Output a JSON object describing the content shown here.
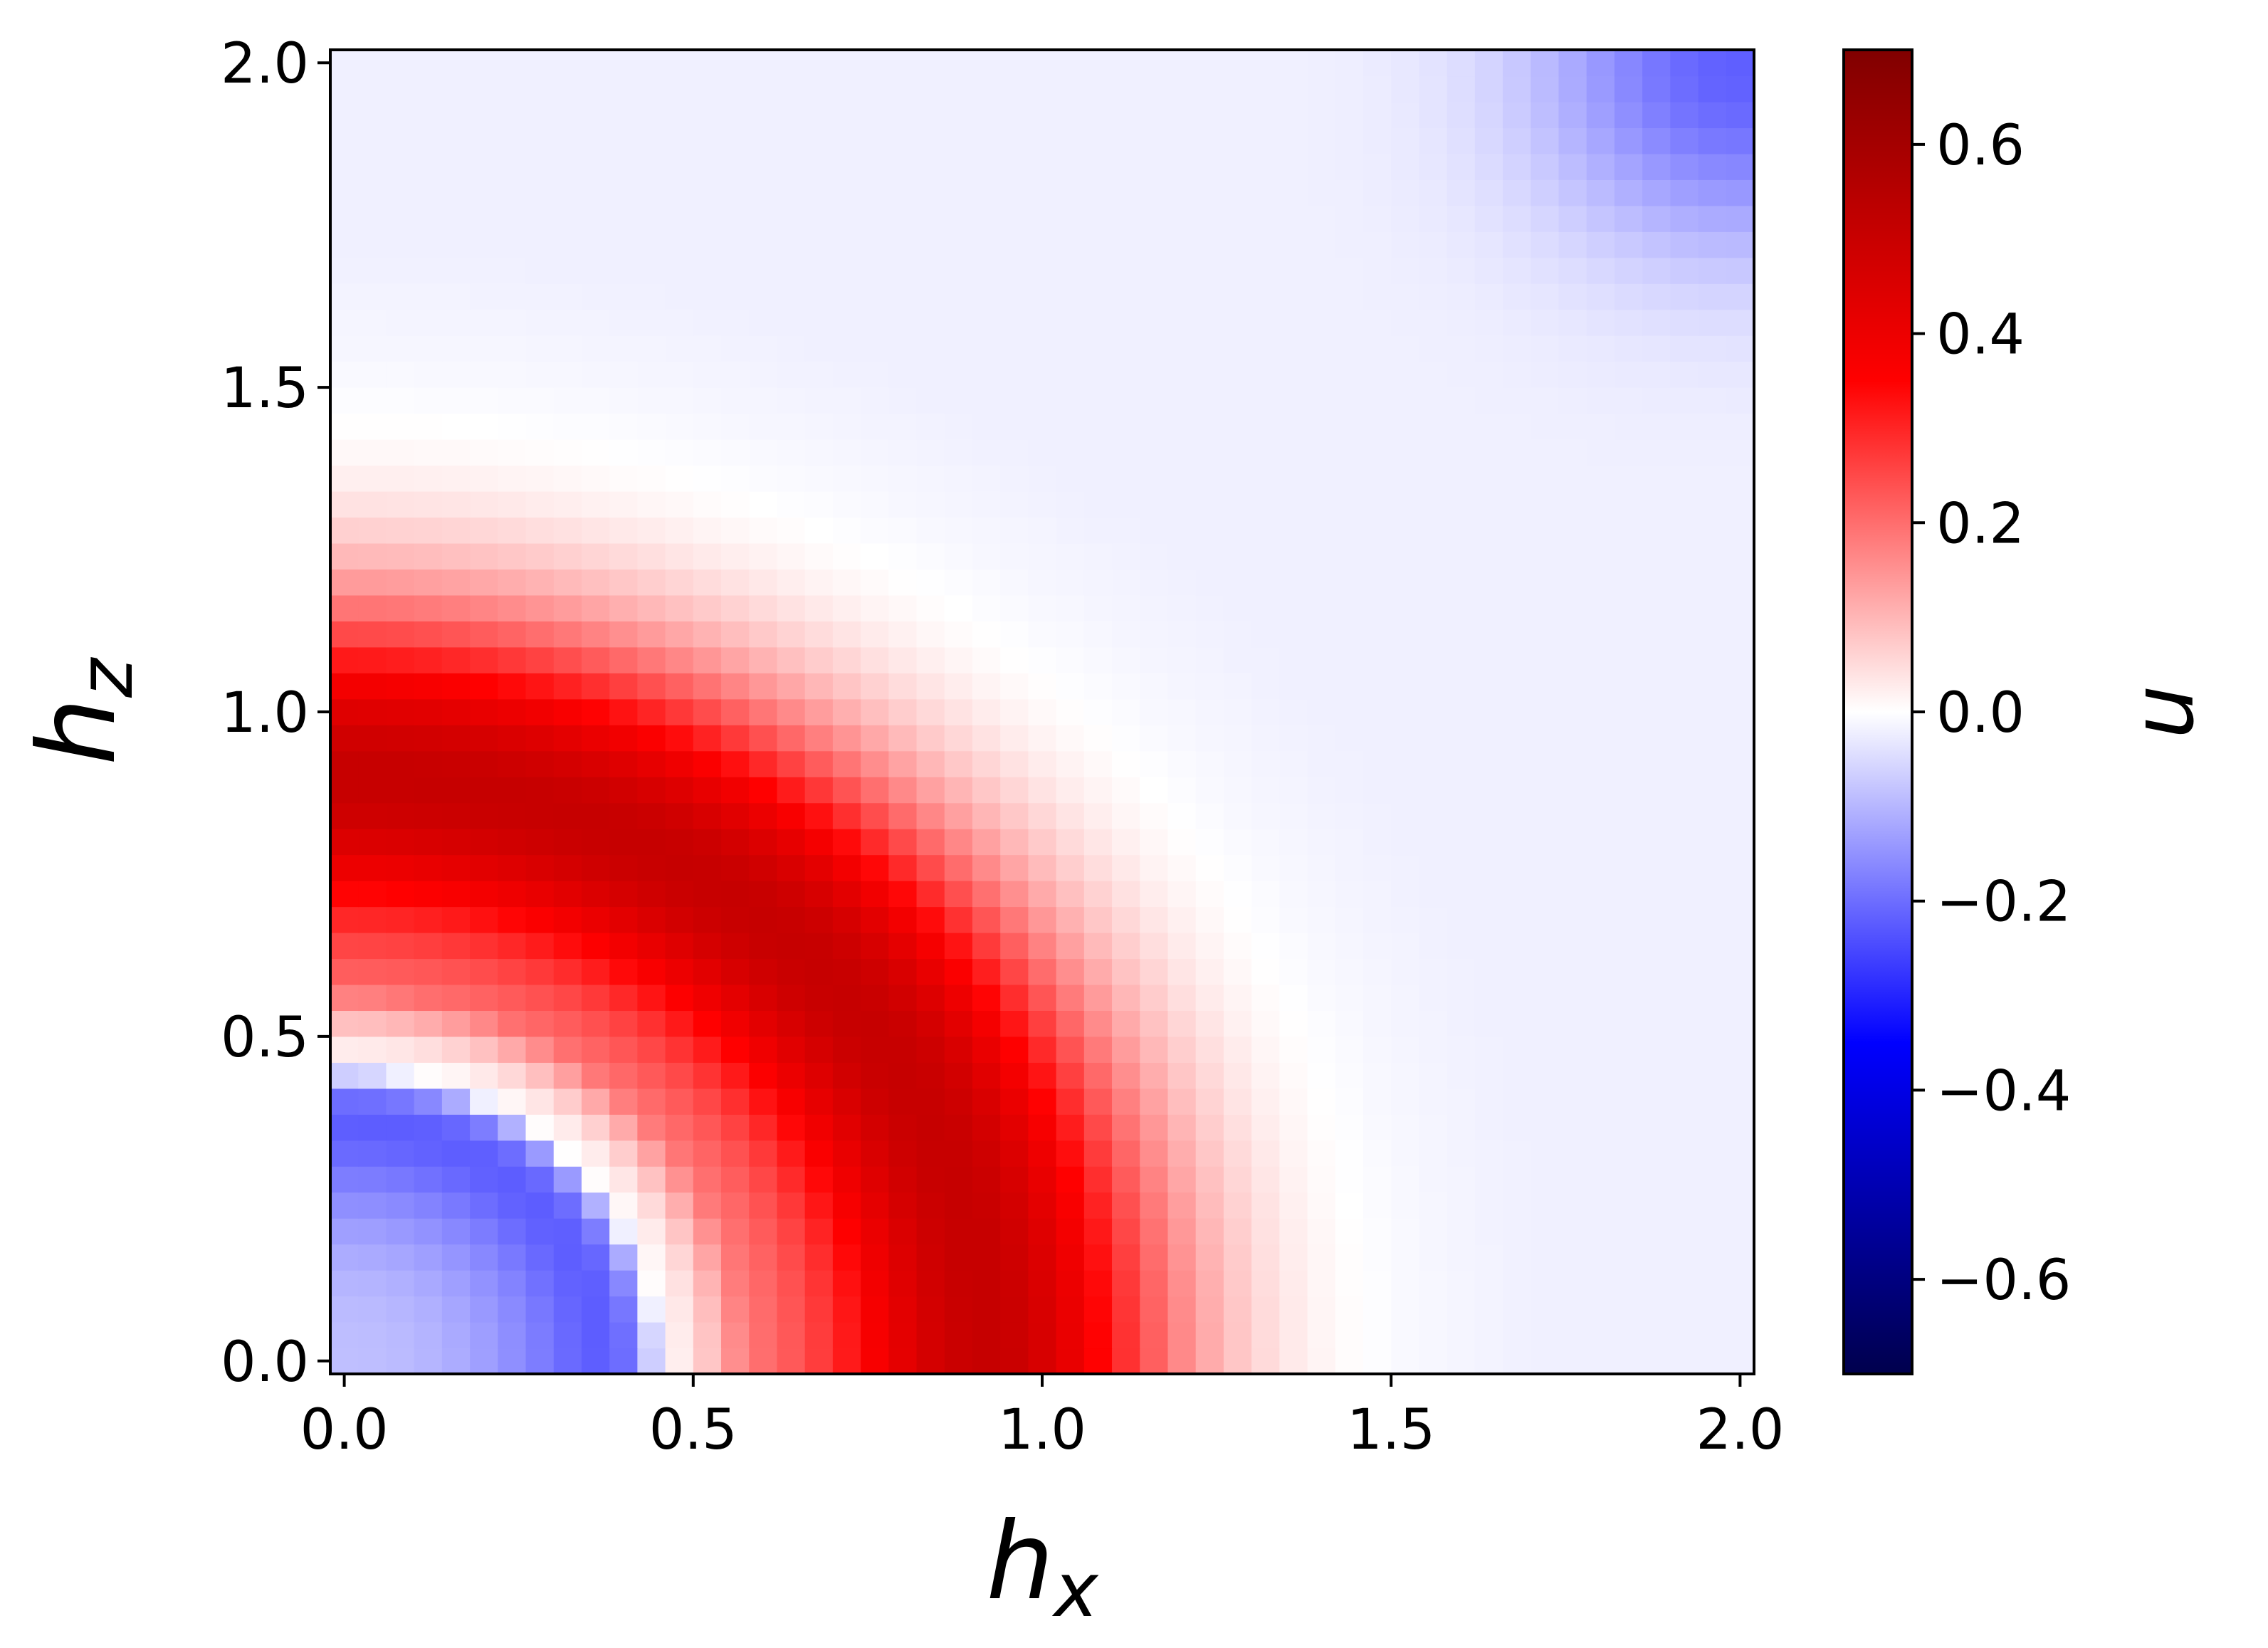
{
  "chart_data": {
    "type": "heatmap",
    "title": "",
    "xlabel": "h",
    "xlabel_sub": "x",
    "ylabel": "h",
    "ylabel_sub": "z",
    "colorbar_label": "u",
    "xlim": [
      0.0,
      2.0
    ],
    "ylim": [
      0.0,
      2.0
    ],
    "clim": [
      -0.7,
      0.7
    ],
    "colormap": "seismic",
    "grid_size": 51,
    "xticks": [
      0.0,
      0.5,
      1.0,
      1.5,
      2.0
    ],
    "xtick_labels": [
      "0.0",
      "0.5",
      "1.0",
      "1.5",
      "2.0"
    ],
    "yticks": [
      0.0,
      0.5,
      1.0,
      1.5,
      2.0
    ],
    "ytick_labels": [
      "0.0",
      "0.5",
      "1.0",
      "1.5",
      "2.0"
    ],
    "cbar_ticks": [
      -0.6,
      -0.4,
      -0.2,
      0.0,
      0.2,
      0.4,
      0.6
    ],
    "cbar_tick_labels": [
      "−0.6",
      "−0.4",
      "−0.2",
      "0.0",
      "0.2",
      "0.4",
      "0.6"
    ],
    "field_description": {
      "center_region_value": -0.35,
      "transition_radius": 0.45,
      "red_ring_radius_hz_axis": 0.9,
      "red_ring_radius_hx_axis": 0.92,
      "peak_value": 0.65,
      "far_field_value": -0.02,
      "corner_value_at_2_2": -0.2
    }
  }
}
